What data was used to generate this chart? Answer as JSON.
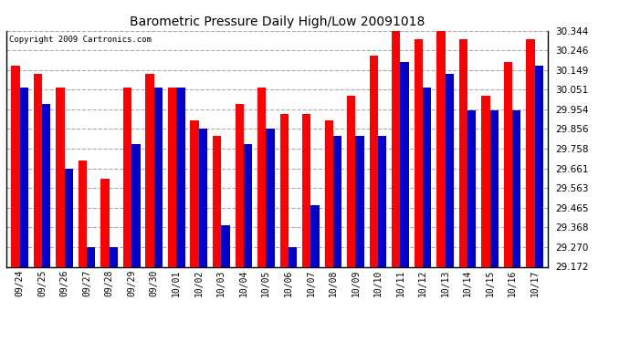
{
  "title": "Barometric Pressure Daily High/Low 20091018",
  "copyright": "Copyright 2009 Cartronics.com",
  "dates": [
    "09/24",
    "09/25",
    "09/26",
    "09/27",
    "09/28",
    "09/29",
    "09/30",
    "10/01",
    "10/02",
    "10/03",
    "10/04",
    "10/05",
    "10/06",
    "10/07",
    "10/08",
    "10/09",
    "10/10",
    "10/11",
    "10/12",
    "10/13",
    "10/14",
    "10/15",
    "10/16",
    "10/17"
  ],
  "highs": [
    30.17,
    30.13,
    30.06,
    29.7,
    29.61,
    30.06,
    30.13,
    30.06,
    29.9,
    29.82,
    29.98,
    30.06,
    29.93,
    29.93,
    29.9,
    30.02,
    30.22,
    30.36,
    30.3,
    30.36,
    30.3,
    30.02,
    30.19,
    30.3
  ],
  "lows": [
    30.06,
    29.98,
    29.66,
    29.27,
    29.27,
    29.78,
    30.06,
    30.06,
    29.86,
    29.38,
    29.78,
    29.86,
    29.27,
    29.48,
    29.82,
    29.82,
    29.82,
    30.19,
    30.06,
    30.13,
    29.95,
    29.95,
    29.95,
    30.17
  ],
  "high_color": "#ff0000",
  "low_color": "#0000cc",
  "bg_color": "#ffffff",
  "plot_bg_color": "#ffffff",
  "grid_color": "#aaaaaa",
  "ymin": 29.172,
  "ymax": 30.344,
  "yticks": [
    29.172,
    29.27,
    29.368,
    29.465,
    29.563,
    29.661,
    29.758,
    29.856,
    29.954,
    30.051,
    30.149,
    30.246,
    30.344
  ]
}
